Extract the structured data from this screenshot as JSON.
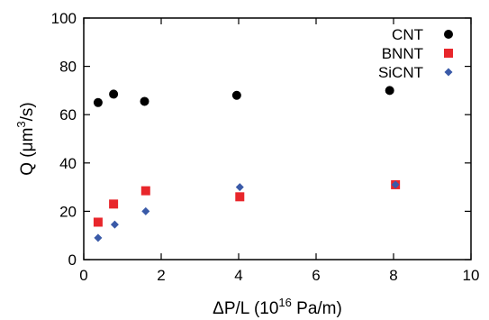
{
  "chart_data": {
    "type": "scatter",
    "xlabel": "ΔP/L (10",
    "xlabel_sup": "16",
    "xlabel_tail": " Pa/m)",
    "ylabel": "Q (μm",
    "ylabel_sup": "3",
    "ylabel_tail": "/s)",
    "xlim": [
      0,
      10
    ],
    "ylim": [
      0,
      100
    ],
    "xticks": [
      0,
      2,
      4,
      6,
      8,
      10
    ],
    "yticks": [
      0,
      20,
      40,
      60,
      80,
      100
    ],
    "grid": false,
    "legend_position": "top-right",
    "series": [
      {
        "name": "CNT",
        "marker": "circle",
        "color": "#000000",
        "points": [
          [
            0.37,
            65
          ],
          [
            0.77,
            68.5
          ],
          [
            1.57,
            65.5
          ],
          [
            3.95,
            68
          ],
          [
            7.9,
            70
          ]
        ]
      },
      {
        "name": "BNNT",
        "marker": "square",
        "color": "#e8262b",
        "points": [
          [
            0.37,
            15.5
          ],
          [
            0.77,
            23
          ],
          [
            1.6,
            28.5
          ],
          [
            4.03,
            26
          ],
          [
            8.05,
            31
          ]
        ]
      },
      {
        "name": "SiCNT",
        "marker": "diamond",
        "color": "#3a5aa8",
        "points": [
          [
            0.37,
            9
          ],
          [
            0.8,
            14.5
          ],
          [
            1.6,
            20
          ],
          [
            4.03,
            30
          ],
          [
            8.05,
            31
          ]
        ]
      }
    ]
  }
}
